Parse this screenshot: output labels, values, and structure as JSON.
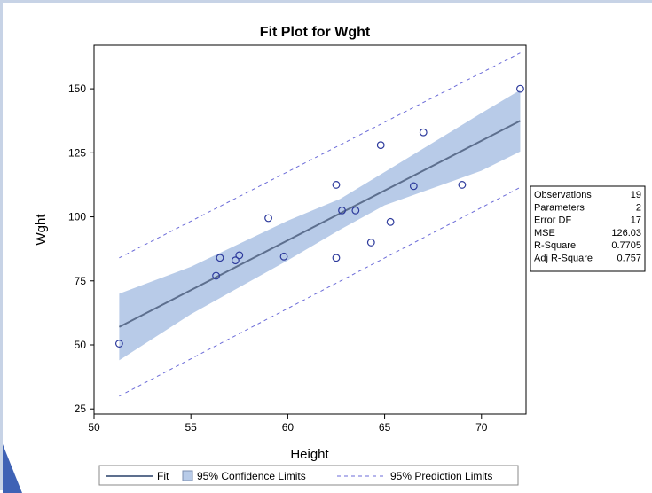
{
  "chart_data": {
    "type": "scatter",
    "title": "Fit Plot for Wght",
    "xlabel": "Height",
    "ylabel": "Wght",
    "xlim": [
      50,
      72.3
    ],
    "ylim": [
      23,
      167
    ],
    "xticks": [
      50,
      55,
      60,
      65,
      70
    ],
    "yticks": [
      25,
      50,
      75,
      100,
      125,
      150
    ],
    "grid": false,
    "points": [
      {
        "x": 51.3,
        "y": 50.5
      },
      {
        "x": 56.3,
        "y": 77
      },
      {
        "x": 56.5,
        "y": 84
      },
      {
        "x": 57.3,
        "y": 83
      },
      {
        "x": 57.5,
        "y": 85
      },
      {
        "x": 59.0,
        "y": 99.5
      },
      {
        "x": 59.8,
        "y": 84.5
      },
      {
        "x": 62.5,
        "y": 112.5
      },
      {
        "x": 62.5,
        "y": 84
      },
      {
        "x": 62.8,
        "y": 102.5
      },
      {
        "x": 63.5,
        "y": 102.5
      },
      {
        "x": 64.3,
        "y": 90
      },
      {
        "x": 64.8,
        "y": 128
      },
      {
        "x": 65.3,
        "y": 98
      },
      {
        "x": 66.5,
        "y": 112
      },
      {
        "x": 67.0,
        "y": 133
      },
      {
        "x": 69.0,
        "y": 112.5
      },
      {
        "x": 72.0,
        "y": 150
      }
    ],
    "fit": {
      "x": [
        51.3,
        72.0
      ],
      "y": [
        57,
        137.5
      ]
    },
    "confidence_limits": {
      "x": [
        51.3,
        55,
        60,
        62.7,
        65,
        70,
        72.0
      ],
      "lower": [
        44,
        62,
        83,
        95,
        104.5,
        118,
        125.5
      ],
      "upper": [
        70,
        80.5,
        98.5,
        107,
        117.5,
        140.5,
        149.5
      ]
    },
    "prediction_limits": {
      "x": [
        51.3,
        72.0
      ],
      "lower": [
        30,
        111.5
      ],
      "upper": [
        84,
        164
      ]
    },
    "legend": {
      "placement": "bottom",
      "entries": [
        "Fit",
        "95% Confidence Limits",
        "95% Prediction Limits"
      ]
    },
    "stats": [
      {
        "label": "Observations",
        "value": "19"
      },
      {
        "label": "Parameters",
        "value": "2"
      },
      {
        "label": "Error DF",
        "value": "17"
      },
      {
        "label": "MSE",
        "value": "126.03"
      },
      {
        "label": "R-Square",
        "value": "0.7705"
      },
      {
        "label": "Adj R-Square",
        "value": "0.757"
      }
    ],
    "colors": {
      "fit_line": "#5d6f8e",
      "confidence_fill": "#b8cbe8",
      "prediction_line": "#6b6bd8",
      "marker": "#2d3a9c"
    }
  }
}
